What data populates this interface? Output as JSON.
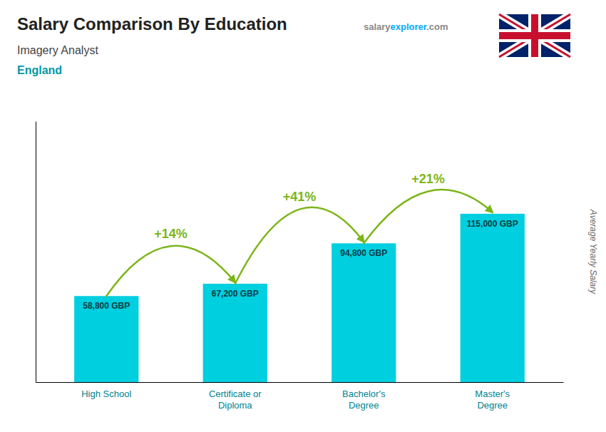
{
  "chart_data": {
    "type": "bar",
    "title": "Salary Comparison By Education",
    "subtitle": [
      "Imagery Analyst",
      "England"
    ],
    "ylabel": "Average Yearly Salary",
    "watermark": [
      "salary",
      "explorer",
      ".com"
    ],
    "categories": [
      "High School",
      "Certificate or\nDiploma",
      "Bachelor's\nDegree",
      "Master's\nDegree"
    ],
    "values": [
      58800,
      67200,
      94800,
      115000
    ],
    "value_labels": [
      "58,800 GBP",
      "67,200 GBP",
      "94,800 GBP",
      "115,000 GBP"
    ],
    "data_labels": true,
    "annotations": [
      "+14%",
      "+41%",
      "+21%"
    ],
    "color": "#00cfdf",
    "ylim": [
      0,
      178250
    ],
    "yticks": [],
    "tick_labels": "x",
    "grid": false
  }
}
